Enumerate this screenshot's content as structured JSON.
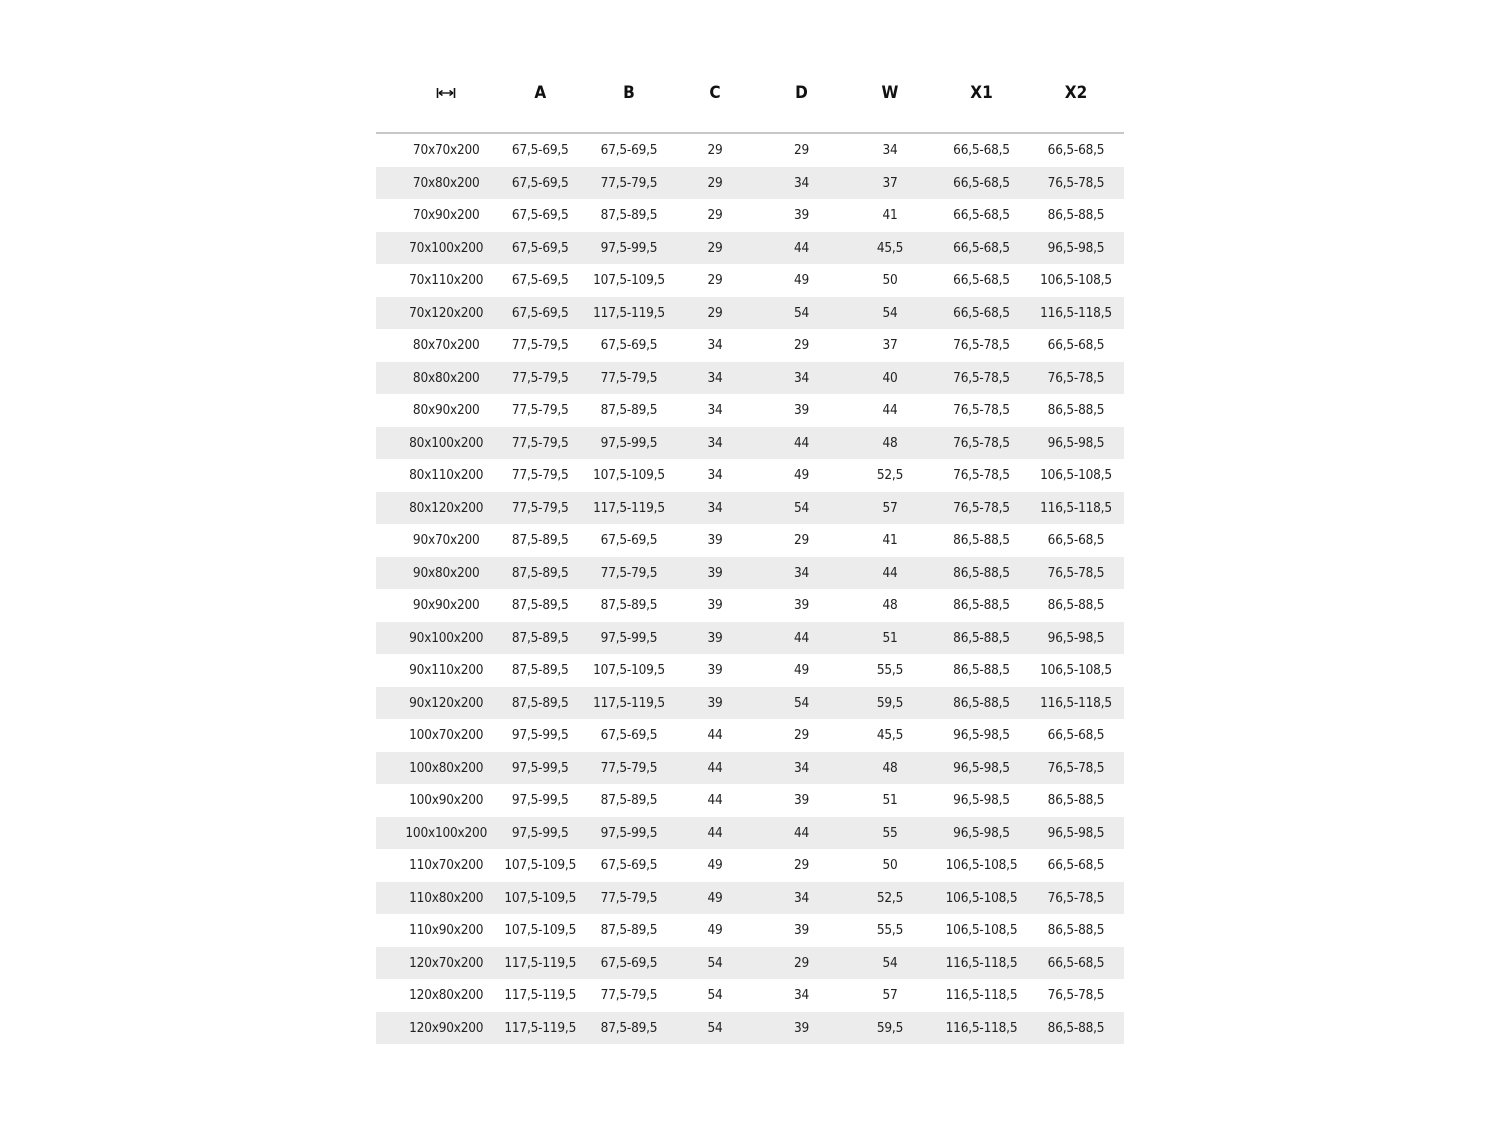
{
  "table": {
    "headers": [
      "width-arrows-icon",
      "A",
      "B",
      "C",
      "D",
      "W",
      "X1",
      "X2"
    ],
    "rows": [
      [
        "70x70x200",
        "67,5-69,5",
        "67,5-69,5",
        "29",
        "29",
        "34",
        "66,5-68,5",
        "66,5-68,5"
      ],
      [
        "70x80x200",
        "67,5-69,5",
        "77,5-79,5",
        "29",
        "34",
        "37",
        "66,5-68,5",
        "76,5-78,5"
      ],
      [
        "70x90x200",
        "67,5-69,5",
        "87,5-89,5",
        "29",
        "39",
        "41",
        "66,5-68,5",
        "86,5-88,5"
      ],
      [
        "70x100x200",
        "67,5-69,5",
        "97,5-99,5",
        "29",
        "44",
        "45,5",
        "66,5-68,5",
        "96,5-98,5"
      ],
      [
        "70x110x200",
        "67,5-69,5",
        "107,5-109,5",
        "29",
        "49",
        "50",
        "66,5-68,5",
        "106,5-108,5"
      ],
      [
        "70x120x200",
        "67,5-69,5",
        "117,5-119,5",
        "29",
        "54",
        "54",
        "66,5-68,5",
        "116,5-118,5"
      ],
      [
        "80x70x200",
        "77,5-79,5",
        "67,5-69,5",
        "34",
        "29",
        "37",
        "76,5-78,5",
        "66,5-68,5"
      ],
      [
        "80x80x200",
        "77,5-79,5",
        "77,5-79,5",
        "34",
        "34",
        "40",
        "76,5-78,5",
        "76,5-78,5"
      ],
      [
        "80x90x200",
        "77,5-79,5",
        "87,5-89,5",
        "34",
        "39",
        "44",
        "76,5-78,5",
        "86,5-88,5"
      ],
      [
        "80x100x200",
        "77,5-79,5",
        "97,5-99,5",
        "34",
        "44",
        "48",
        "76,5-78,5",
        "96,5-98,5"
      ],
      [
        "80x110x200",
        "77,5-79,5",
        "107,5-109,5",
        "34",
        "49",
        "52,5",
        "76,5-78,5",
        "106,5-108,5"
      ],
      [
        "80x120x200",
        "77,5-79,5",
        "117,5-119,5",
        "34",
        "54",
        "57",
        "76,5-78,5",
        "116,5-118,5"
      ],
      [
        "90x70x200",
        "87,5-89,5",
        "67,5-69,5",
        "39",
        "29",
        "41",
        "86,5-88,5",
        "66,5-68,5"
      ],
      [
        "90x80x200",
        "87,5-89,5",
        "77,5-79,5",
        "39",
        "34",
        "44",
        "86,5-88,5",
        "76,5-78,5"
      ],
      [
        "90x90x200",
        "87,5-89,5",
        "87,5-89,5",
        "39",
        "39",
        "48",
        "86,5-88,5",
        "86,5-88,5"
      ],
      [
        "90x100x200",
        "87,5-89,5",
        "97,5-99,5",
        "39",
        "44",
        "51",
        "86,5-88,5",
        "96,5-98,5"
      ],
      [
        "90x110x200",
        "87,5-89,5",
        "107,5-109,5",
        "39",
        "49",
        "55,5",
        "86,5-88,5",
        "106,5-108,5"
      ],
      [
        "90x120x200",
        "87,5-89,5",
        "117,5-119,5",
        "39",
        "54",
        "59,5",
        "86,5-88,5",
        "116,5-118,5"
      ],
      [
        "100x70x200",
        "97,5-99,5",
        "67,5-69,5",
        "44",
        "29",
        "45,5",
        "96,5-98,5",
        "66,5-68,5"
      ],
      [
        "100x80x200",
        "97,5-99,5",
        "77,5-79,5",
        "44",
        "34",
        "48",
        "96,5-98,5",
        "76,5-78,5"
      ],
      [
        "100x90x200",
        "97,5-99,5",
        "87,5-89,5",
        "44",
        "39",
        "51",
        "96,5-98,5",
        "86,5-88,5"
      ],
      [
        "100x100x200",
        "97,5-99,5",
        "97,5-99,5",
        "44",
        "44",
        "55",
        "96,5-98,5",
        "96,5-98,5"
      ],
      [
        "110x70x200",
        "107,5-109,5",
        "67,5-69,5",
        "49",
        "29",
        "50",
        "106,5-108,5",
        "66,5-68,5"
      ],
      [
        "110x80x200",
        "107,5-109,5",
        "77,5-79,5",
        "49",
        "34",
        "52,5",
        "106,5-108,5",
        "76,5-78,5"
      ],
      [
        "110x90x200",
        "107,5-109,5",
        "87,5-89,5",
        "49",
        "39",
        "55,5",
        "106,5-108,5",
        "86,5-88,5"
      ],
      [
        "120x70x200",
        "117,5-119,5",
        "67,5-69,5",
        "54",
        "29",
        "54",
        "116,5-118,5",
        "66,5-68,5"
      ],
      [
        "120x80x200",
        "117,5-119,5",
        "77,5-79,5",
        "54",
        "34",
        "57",
        "116,5-118,5",
        "76,5-78,5"
      ],
      [
        "120x90x200",
        "117,5-119,5",
        "87,5-89,5",
        "54",
        "39",
        "59,5",
        "116,5-118,5",
        "86,5-88,5"
      ]
    ]
  },
  "colors": {
    "stripe": "#ececec",
    "header_rule": "#c8c8c8",
    "text": "#222222"
  }
}
